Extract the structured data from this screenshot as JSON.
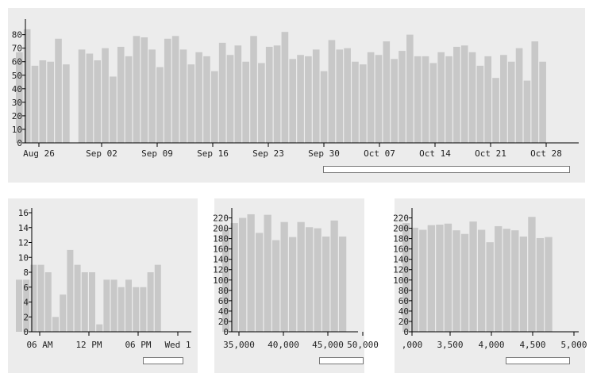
{
  "colors": {
    "bar": "#c8c8c8",
    "panel": "#ececec",
    "axis": "#000000"
  },
  "chart_data": [
    {
      "type": "bar",
      "id": "days",
      "x_tick_labels": [
        "Aug 26",
        "Sep 02",
        "Sep 09",
        "Sep 16",
        "Sep 23",
        "Sep 30",
        "Oct 07",
        "Oct 14",
        "Oct 21",
        "Oct 28"
      ],
      "y_tick_labels": [
        "0",
        "10",
        "20",
        "30",
        "40",
        "50",
        "60",
        "70",
        "80"
      ],
      "ylim": [
        0,
        88
      ],
      "values": [
        67,
        84,
        57,
        61,
        60,
        77,
        58,
        0,
        69,
        66,
        61,
        70,
        49,
        71,
        64,
        79,
        78,
        69,
        56,
        77,
        79,
        69,
        58,
        67,
        64,
        53,
        74,
        65,
        72,
        60,
        79,
        59,
        71,
        72,
        82,
        62,
        65,
        64,
        69,
        53,
        76,
        69,
        70,
        60,
        58,
        67,
        65,
        75,
        62,
        68,
        80,
        64,
        64,
        59,
        67,
        64,
        71,
        72,
        67,
        57,
        64,
        48,
        65,
        60,
        70,
        46,
        75,
        60
      ],
      "grid": false
    },
    {
      "type": "bar",
      "id": "hours",
      "x_tick_labels": [
        "06 AM",
        "12 PM",
        "06 PM",
        "Wed 1"
      ],
      "y_tick_labels": [
        "0",
        "2",
        "4",
        "6",
        "8",
        "10",
        "12",
        "14",
        "16"
      ],
      "ylim": [
        0,
        16
      ],
      "values": [
        7,
        7,
        9,
        9,
        8,
        2,
        5,
        11,
        9,
        8,
        8,
        1,
        7,
        7,
        6,
        7,
        6,
        6,
        8,
        9
      ],
      "grid": false
    },
    {
      "type": "bar",
      "id": "delays",
      "x_tick_labels": [
        "35,000",
        "40,000",
        "45,000",
        "50,000"
      ],
      "y_tick_labels": [
        "0",
        "20",
        "40",
        "60",
        "80",
        "100",
        "120",
        "140",
        "160",
        "180",
        "200",
        "220"
      ],
      "ylim": [
        0,
        230
      ],
      "values": [
        198,
        210,
        220,
        227,
        191,
        226,
        177,
        212,
        183,
        212,
        202,
        200,
        184,
        215,
        184
      ],
      "grid": false
    },
    {
      "type": "bar",
      "id": "distances",
      "x_tick_labels": [
        ",000",
        "3,500",
        "4,000",
        "4,500",
        "5,000"
      ],
      "y_tick_labels": [
        "0",
        "20",
        "40",
        "60",
        "80",
        "100",
        "120",
        "140",
        "160",
        "180",
        "200",
        "220"
      ],
      "ylim": [
        0,
        230
      ],
      "values": [
        210,
        201,
        197,
        206,
        207,
        209,
        196,
        189,
        213,
        197,
        173,
        204,
        199,
        196,
        184,
        222,
        181,
        183
      ],
      "grid": false
    }
  ]
}
